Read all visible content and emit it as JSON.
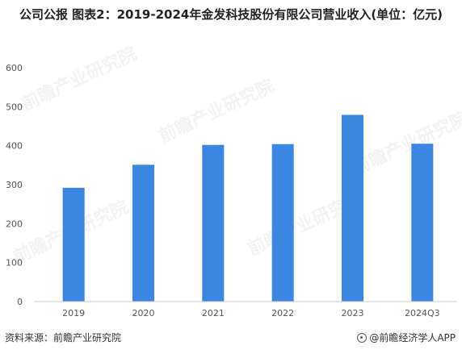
{
  "title": "公司公报 图表2：2019-2024年金发科技股份有限公司营业收入(单位：亿元)",
  "footer": {
    "source": "资料来源：前瞻产业研究院",
    "brand": "@前瞻经济学人APP",
    "brand_icon": "circle-logo-icon"
  },
  "watermark": "前瞻产业研究院",
  "colors": {
    "bar": "#3b86e2",
    "axis": "#cccccc",
    "tick_text": "#555555"
  },
  "chart_data": {
    "type": "bar",
    "title": "公司公报 图表2：2019-2024年金发科技股份有限公司营业收入(单位：亿元)",
    "categories": [
      "2019",
      "2020",
      "2021",
      "2022",
      "2023",
      "2024Q3"
    ],
    "values": [
      292,
      351,
      402,
      404,
      479,
      405
    ],
    "xlabel": "",
    "ylabel": "",
    "ylim": [
      0,
      600
    ],
    "yticks": [
      "0",
      "100",
      "200",
      "300",
      "400",
      "500",
      "600"
    ],
    "grid": false,
    "legend": "none"
  }
}
